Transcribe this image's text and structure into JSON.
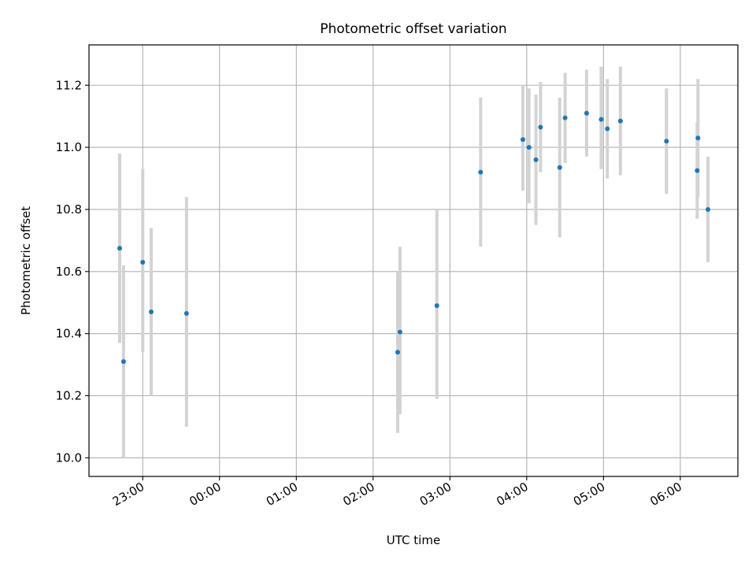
{
  "chart_data": {
    "type": "scatter",
    "title": "Photometric offset variation",
    "xlabel": "UTC time",
    "ylabel": "Photometric offset",
    "x_unit": "hours (UTC clock, values ≥24 are after midnight)",
    "xlim": [
      22.3,
      30.75
    ],
    "ylim": [
      9.94,
      11.33
    ],
    "grid": true,
    "colors": {
      "points": "#1f77b4",
      "errorbars": "#d3d3d3",
      "grid": "#b0b0b0",
      "axes": "#000000"
    },
    "xticks": [
      {
        "value": 23,
        "label": "23:00"
      },
      {
        "value": 24,
        "label": "00:00"
      },
      {
        "value": 25,
        "label": "01:00"
      },
      {
        "value": 26,
        "label": "02:00"
      },
      {
        "value": 27,
        "label": "03:00"
      },
      {
        "value": 28,
        "label": "04:00"
      },
      {
        "value": 29,
        "label": "05:00"
      },
      {
        "value": 30,
        "label": "06:00"
      }
    ],
    "yticks": [
      {
        "value": 10.0,
        "label": "10.0"
      },
      {
        "value": 10.2,
        "label": "10.2"
      },
      {
        "value": 10.4,
        "label": "10.4"
      },
      {
        "value": 10.6,
        "label": "10.6"
      },
      {
        "value": 10.8,
        "label": "10.8"
      },
      {
        "value": 11.0,
        "label": "11.0"
      },
      {
        "value": 11.2,
        "label": "11.2"
      }
    ],
    "points": [
      {
        "x": 22.7,
        "y": 10.675,
        "ylo": 10.37,
        "yhi": 10.98
      },
      {
        "x": 22.75,
        "y": 10.31,
        "ylo": 10.0,
        "yhi": 10.62
      },
      {
        "x": 23.0,
        "y": 10.63,
        "ylo": 10.34,
        "yhi": 10.93
      },
      {
        "x": 23.11,
        "y": 10.47,
        "ylo": 10.2,
        "yhi": 10.74
      },
      {
        "x": 23.57,
        "y": 10.465,
        "ylo": 10.1,
        "yhi": 10.84
      },
      {
        "x": 26.32,
        "y": 10.34,
        "ylo": 10.08,
        "yhi": 10.6
      },
      {
        "x": 26.35,
        "y": 10.405,
        "ylo": 10.14,
        "yhi": 10.68
      },
      {
        "x": 26.83,
        "y": 10.49,
        "ylo": 10.19,
        "yhi": 10.8
      },
      {
        "x": 27.4,
        "y": 10.92,
        "ylo": 10.68,
        "yhi": 11.16
      },
      {
        "x": 27.95,
        "y": 11.025,
        "ylo": 10.86,
        "yhi": 11.2
      },
      {
        "x": 28.03,
        "y": 11.0,
        "ylo": 10.82,
        "yhi": 11.19
      },
      {
        "x": 28.12,
        "y": 10.96,
        "ylo": 10.75,
        "yhi": 11.17
      },
      {
        "x": 28.18,
        "y": 11.065,
        "ylo": 10.92,
        "yhi": 11.21
      },
      {
        "x": 28.43,
        "y": 10.935,
        "ylo": 10.71,
        "yhi": 11.16
      },
      {
        "x": 28.5,
        "y": 11.095,
        "ylo": 10.95,
        "yhi": 11.24
      },
      {
        "x": 28.78,
        "y": 11.11,
        "ylo": 10.97,
        "yhi": 11.25
      },
      {
        "x": 28.97,
        "y": 11.09,
        "ylo": 10.93,
        "yhi": 11.26
      },
      {
        "x": 29.05,
        "y": 11.06,
        "ylo": 10.9,
        "yhi": 11.22
      },
      {
        "x": 29.22,
        "y": 11.085,
        "ylo": 10.91,
        "yhi": 11.26
      },
      {
        "x": 29.82,
        "y": 11.02,
        "ylo": 10.85,
        "yhi": 11.19
      },
      {
        "x": 30.22,
        "y": 10.925,
        "ylo": 10.77,
        "yhi": 11.08
      },
      {
        "x": 30.23,
        "y": 11.03,
        "ylo": 10.84,
        "yhi": 11.22
      },
      {
        "x": 30.36,
        "y": 10.8,
        "ylo": 10.63,
        "yhi": 10.97
      }
    ]
  }
}
